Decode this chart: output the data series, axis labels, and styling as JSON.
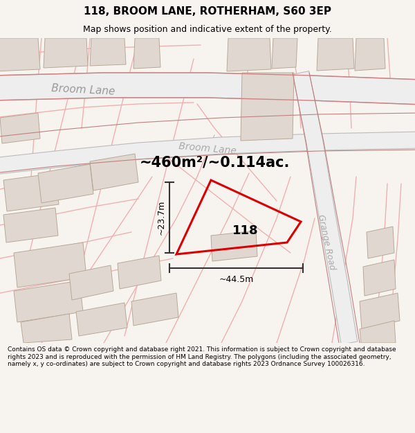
{
  "title": "118, BROOM LANE, ROTHERHAM, S60 3EP",
  "subtitle": "Map shows position and indicative extent of the property.",
  "footer": "Contains OS data © Crown copyright and database right 2021. This information is subject to Crown copyright and database rights 2023 and is reproduced with the permission of HM Land Registry. The polygons (including the associated geometry, namely x, y co-ordinates) are subject to Crown copyright and database rights 2023 Ordnance Survey 100026316.",
  "bg_color": "#f7f4f0",
  "map_bg": "#ffffff",
  "road_fill": "#f2e8e8",
  "road_edge": "#d4a0a0",
  "road_thick_fill": "#ebe0e0",
  "road_thick_edge": "#c09090",
  "block_color": "#e0d8d0",
  "block_edge": "#b8a898",
  "plot_color": "#dd0000",
  "plot_lw": 2.2,
  "measure_color": "#333333",
  "area_text": "~460m²/~0.114ac.",
  "width_label": "~44.5m",
  "height_label": "~23.7m",
  "label_118": "118",
  "road_label_broom1": "Broom Lane",
  "road_label_broom2": "Broom Lane",
  "road_label_grange": "Grange Road",
  "figsize": [
    6.0,
    6.25
  ],
  "dpi": 100
}
